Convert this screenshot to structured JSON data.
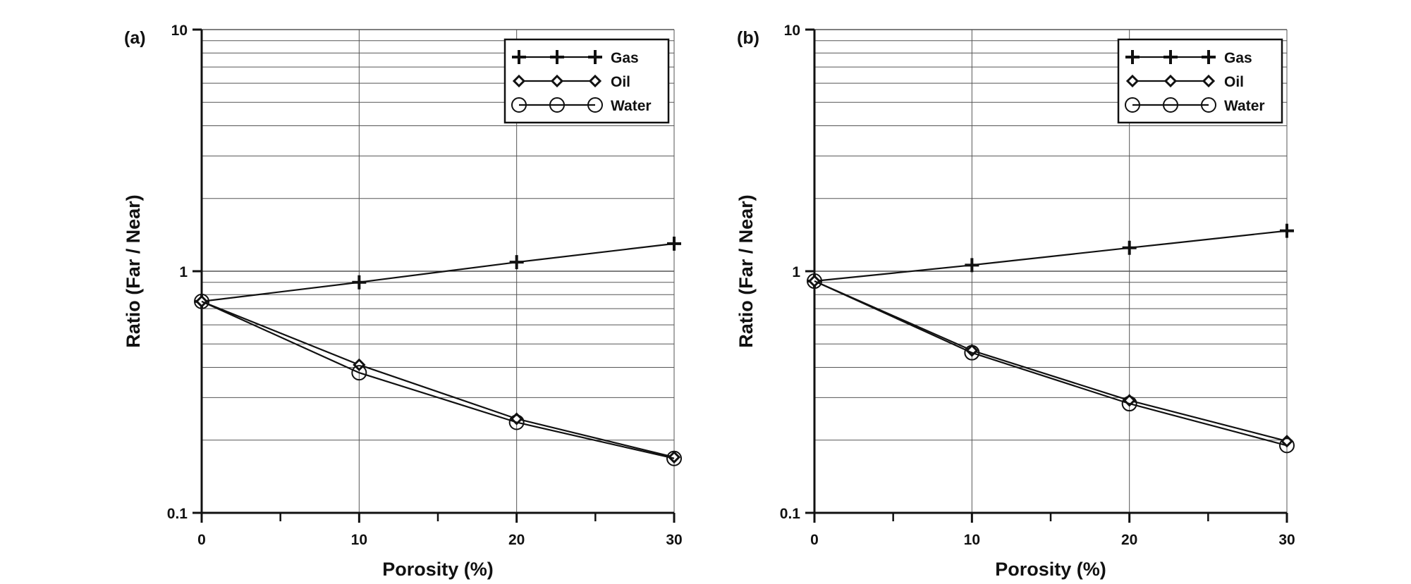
{
  "chart_data": [
    {
      "type": "line",
      "panel_label": "(a)",
      "xlabel": "Porosity (%)",
      "ylabel": "Ratio (Far / Near)",
      "x": [
        0,
        10,
        20,
        30
      ],
      "xlim": [
        0,
        30
      ],
      "ylim": [
        0.1,
        10
      ],
      "yscale": "log",
      "x_ticks": [
        0,
        10,
        20,
        30
      ],
      "y_ticks": [
        "0.1",
        "1",
        "10"
      ],
      "grid": true,
      "legend_position": "top-right",
      "series": [
        {
          "name": "Gas",
          "marker": "plus",
          "values": [
            0.75,
            0.9,
            1.09,
            1.3
          ]
        },
        {
          "name": "Oil",
          "marker": "diamond",
          "values": [
            0.75,
            0.41,
            0.245,
            0.17
          ]
        },
        {
          "name": "Water",
          "marker": "circle",
          "values": [
            0.75,
            0.38,
            0.237,
            0.168
          ]
        }
      ]
    },
    {
      "type": "line",
      "panel_label": "(b)",
      "xlabel": "Porosity (%)",
      "ylabel": "Ratio (Far / Near)",
      "x": [
        0,
        10,
        20,
        30
      ],
      "xlim": [
        0,
        30
      ],
      "ylim": [
        0.1,
        10
      ],
      "yscale": "log",
      "x_ticks": [
        0,
        10,
        20,
        30
      ],
      "y_ticks": [
        "0.1",
        "1",
        "10"
      ],
      "grid": true,
      "legend_position": "top-right",
      "series": [
        {
          "name": "Gas",
          "marker": "plus",
          "values": [
            0.91,
            1.06,
            1.25,
            1.47
          ]
        },
        {
          "name": "Oil",
          "marker": "diamond",
          "values": [
            0.91,
            0.47,
            0.292,
            0.198
          ]
        },
        {
          "name": "Water",
          "marker": "circle",
          "values": [
            0.91,
            0.46,
            0.283,
            0.19
          ]
        }
      ]
    }
  ]
}
